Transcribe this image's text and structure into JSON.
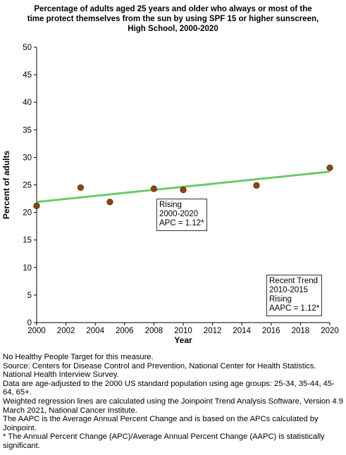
{
  "chart_data": {
    "type": "scatter",
    "title_lines": [
      "Percentage of adults aged 25 years and older who always or most of the",
      "time protect themselves from the sun by using SPF 15 or higher sunscreen,",
      "High School,  2000-2020"
    ],
    "xlabel": "Year",
    "ylabel": "Percent of adults",
    "xlim": [
      2000,
      2020
    ],
    "ylim": [
      0,
      50
    ],
    "x_ticks": [
      2000,
      2002,
      2004,
      2006,
      2008,
      2010,
      2012,
      2014,
      2016,
      2018,
      2020
    ],
    "y_ticks": [
      0,
      5,
      10,
      15,
      20,
      25,
      30,
      35,
      40,
      45,
      50
    ],
    "grid": false,
    "series": [
      {
        "type": "scatter",
        "color": "#8b4513",
        "points": [
          {
            "x": 2000,
            "y": 21.2
          },
          {
            "x": 2003,
            "y": 24.5
          },
          {
            "x": 2005,
            "y": 21.9
          },
          {
            "x": 2008,
            "y": 24.3
          },
          {
            "x": 2010,
            "y": 24.1
          },
          {
            "x": 2015,
            "y": 24.9
          },
          {
            "x": 2020,
            "y": 28.1
          }
        ]
      },
      {
        "type": "line",
        "color": "#6cc96c",
        "points": [
          {
            "x": 2000,
            "y": 21.9
          },
          {
            "x": 2020,
            "y": 27.4
          }
        ]
      }
    ],
    "annotations": [
      {
        "id": "overall",
        "lines": [
          "Rising",
          "2000-2020",
          "APC =  1.12*"
        ]
      },
      {
        "id": "recent",
        "lines": [
          "Recent Trend",
          "2010-2015",
          "Rising",
          "AAPC =  1.12*"
        ]
      }
    ]
  },
  "footnotes": [
    "No Healthy People Target for this measure.",
    "Source: Centers for Disease Control and Prevention, National Center for Health Statistics. National Health Interview Survey.",
    "Data are age-adjusted to the 2000 US standard population using age groups: 25-34, 35-44, 45-64, 65+.",
    "Weighted regression lines are calculated using the Joinpoint Trend Analysis Software, Version 4.9 March 2021, National Cancer Institute.",
    "The AAPC is the Average Annual Percent Change and is based on the APCs calculated by Joinpoint.",
    "* The Annual Percent Change (APC)/Average Annual Percent Change (AAPC) is statistically significant."
  ]
}
